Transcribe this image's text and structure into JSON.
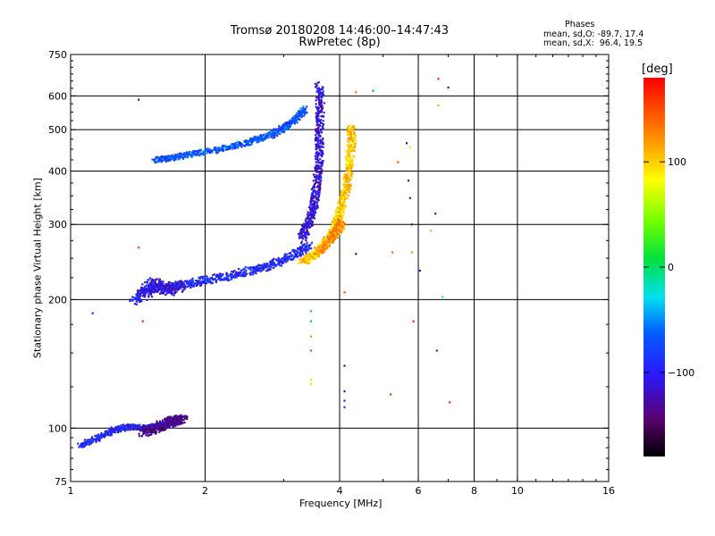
{
  "header": {
    "title_line1": "Tromsø 20180208 14:46:00–14:47:43",
    "title_line2": "RwPretec (8p)"
  },
  "stats": {
    "heading": "Phases",
    "o_mode": "mean, sd,O: -89.7, 17.4",
    "x_mode": "mean, sd,X:  96.4, 19.5"
  },
  "colorbar": {
    "unit": "[deg]",
    "range": [
      -180,
      180
    ],
    "ticks": [
      100,
      0,
      -100
    ],
    "tick_labels": [
      "100",
      "0",
      "−100"
    ]
  },
  "chart_data": {
    "type": "scatter",
    "title": "Tromsø 20180208 14:46:00–14:47:43",
    "subtitle": "RwPretec (8p)",
    "xlabel": "Frequency [MHz]",
    "ylabel": "Stationary phase Virtual Height [km]",
    "xscale": "log",
    "yscale": "log",
    "xlim": [
      1,
      16
    ],
    "ylim": [
      75,
      750
    ],
    "xticks": [
      1,
      2,
      4,
      6,
      8,
      10,
      16
    ],
    "xtick_labels": [
      "1",
      "2",
      "4",
      "6",
      "8",
      "10",
      "16"
    ],
    "yticks": [
      75,
      100,
      200,
      300,
      400,
      500,
      600,
      750
    ],
    "ytick_labels": [
      "75",
      "100",
      "200",
      "300",
      "400",
      "500",
      "600",
      "750"
    ],
    "grid": true,
    "color_encoding": "phase [deg]",
    "traces": [
      {
        "x": [
          1.05,
          1.15,
          1.25,
          1.35,
          1.45,
          1.55,
          1.65,
          1.75
        ],
        "y": [
          91,
          95,
          99,
          101,
          100,
          101,
          102,
          104
        ],
        "phase": -95,
        "spread": 0.025
      },
      {
        "x": [
          1.45,
          1.55,
          1.62,
          1.7,
          1.78
        ],
        "y": [
          98,
          100,
          102,
          104,
          105
        ],
        "phase": -135,
        "spread": 0.04
      },
      {
        "x": [
          1.38,
          1.5,
          1.62,
          1.8,
          2.0,
          2.3,
          2.6,
          2.9,
          3.2,
          3.4
        ],
        "y": [
          198,
          212,
          214,
          217,
          222,
          228,
          236,
          244,
          256,
          270
        ],
        "phase": -92,
        "spread": 0.035
      },
      {
        "x": [
          1.45,
          1.55,
          1.65,
          1.75
        ],
        "y": [
          205,
          220,
          210,
          215
        ],
        "phase": -110,
        "spread": 0.05
      },
      {
        "x": [
          3.3,
          3.4,
          3.5,
          3.55,
          3.6,
          3.6,
          3.62,
          3.6
        ],
        "y": [
          280,
          300,
          330,
          370,
          420,
          480,
          560,
          640
        ],
        "phase": -108,
        "spread": 0.03
      },
      {
        "x": [
          1.55,
          1.7,
          1.9,
          2.2,
          2.5,
          2.8,
          3.0,
          3.2,
          3.35
        ],
        "y": [
          425,
          430,
          440,
          452,
          468,
          485,
          505,
          530,
          560
        ],
        "phase": -70,
        "spread": 0.025
      },
      {
        "x": [
          3.3,
          3.5,
          3.7,
          3.85,
          3.95,
          4.05,
          4.15,
          4.2,
          4.25,
          4.25
        ],
        "y": [
          245,
          255,
          268,
          285,
          305,
          335,
          370,
          410,
          460,
          510
        ],
        "phase": 100,
        "spread": 0.03
      },
      {
        "x": [
          3.6,
          3.8,
          3.95,
          4.05
        ],
        "y": [
          260,
          275,
          290,
          305
        ],
        "phase": 125,
        "spread": 0.03
      }
    ],
    "isolated_points": [
      {
        "x": 1.42,
        "y": 588,
        "phase": -115
      },
      {
        "x": 1.42,
        "y": 265,
        "phase": 150
      },
      {
        "x": 1.45,
        "y": 178,
        "phase": 165
      },
      {
        "x": 1.12,
        "y": 186,
        "phase": -100
      },
      {
        "x": 3.45,
        "y": 188,
        "phase": -40
      },
      {
        "x": 3.45,
        "y": 178,
        "phase": -40
      },
      {
        "x": 3.45,
        "y": 164,
        "phase": 120
      },
      {
        "x": 3.45,
        "y": 152,
        "phase": 150
      },
      {
        "x": 3.45,
        "y": 130,
        "phase": 90
      },
      {
        "x": 3.45,
        "y": 127,
        "phase": 60
      },
      {
        "x": 4.1,
        "y": 140,
        "phase": -130
      },
      {
        "x": 4.1,
        "y": 122,
        "phase": -110
      },
      {
        "x": 4.1,
        "y": 116,
        "phase": -95
      },
      {
        "x": 4.1,
        "y": 112,
        "phase": -75
      },
      {
        "x": 4.1,
        "y": 208,
        "phase": 150
      },
      {
        "x": 4.35,
        "y": 256,
        "phase": -120
      },
      {
        "x": 4.35,
        "y": 612,
        "phase": 130
      },
      {
        "x": 4.75,
        "y": 617,
        "phase": -50
      },
      {
        "x": 5.2,
        "y": 120,
        "phase": 160
      },
      {
        "x": 5.25,
        "y": 258,
        "phase": 140
      },
      {
        "x": 5.4,
        "y": 420,
        "phase": 140
      },
      {
        "x": 5.65,
        "y": 465,
        "phase": -140
      },
      {
        "x": 5.75,
        "y": 455,
        "phase": 90
      },
      {
        "x": 5.7,
        "y": 380,
        "phase": -130
      },
      {
        "x": 5.75,
        "y": 346,
        "phase": -110
      },
      {
        "x": 5.8,
        "y": 300,
        "phase": -130
      },
      {
        "x": 5.8,
        "y": 258,
        "phase": 120
      },
      {
        "x": 5.85,
        "y": 178,
        "phase": 170
      },
      {
        "x": 6.05,
        "y": 234,
        "phase": -120
      },
      {
        "x": 6.4,
        "y": 290,
        "phase": 110
      },
      {
        "x": 6.55,
        "y": 318,
        "phase": -130
      },
      {
        "x": 6.6,
        "y": 152,
        "phase": -100
      },
      {
        "x": 6.8,
        "y": 203,
        "phase": -30
      },
      {
        "x": 6.65,
        "y": 658,
        "phase": 165
      },
      {
        "x": 7.0,
        "y": 628,
        "phase": -110
      },
      {
        "x": 6.65,
        "y": 570,
        "phase": 110
      },
      {
        "x": 7.05,
        "y": 115,
        "phase": 165
      }
    ]
  }
}
